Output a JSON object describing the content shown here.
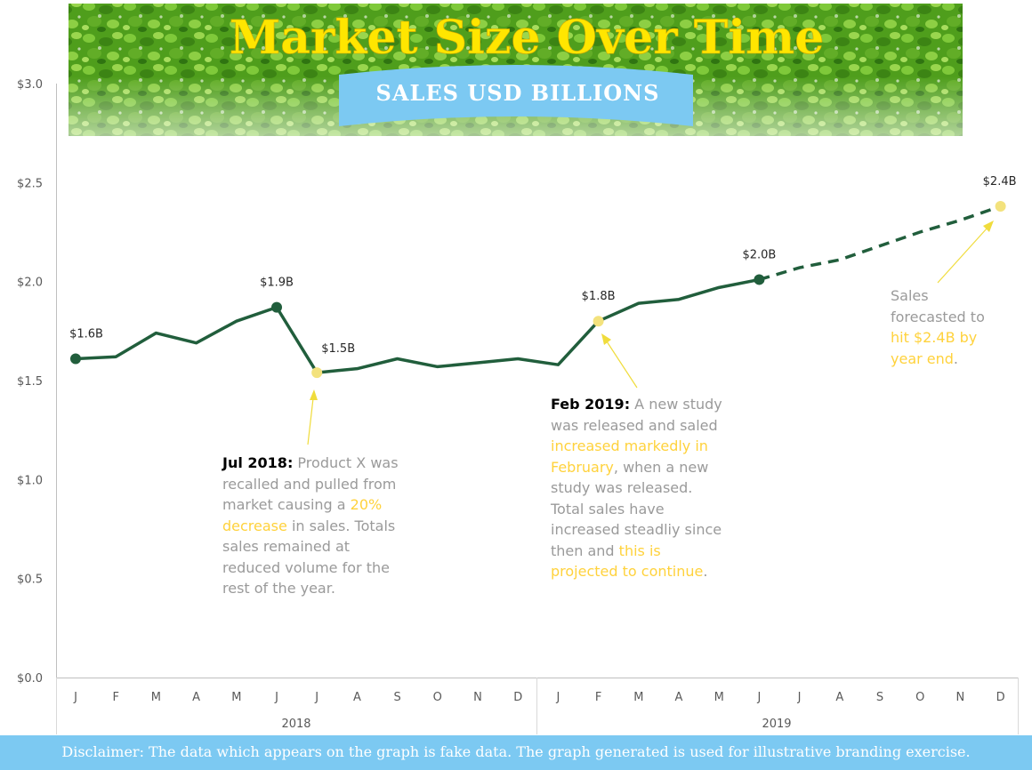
{
  "colors": {
    "line": "#215e3c",
    "highlight_marker": "#f3e27d",
    "highlight_text": "#ffd23c",
    "annotation_text": "#9a9a9a",
    "banner_sub_bg": "#7cc9f2",
    "footer_bg": "#7cc9f2",
    "title": "#ffe600"
  },
  "banner": {
    "title": "Market Size Over Time",
    "subtitle": "SALES USD BILLIONS"
  },
  "chart_data": {
    "type": "line",
    "title": "Market Size Over Time",
    "subtitle": "SALES USD BILLIONS",
    "x": [
      "2018-J",
      "2018-F",
      "2018-M",
      "2018-A",
      "2018-M",
      "2018-J",
      "2018-J",
      "2018-A",
      "2018-S",
      "2018-O",
      "2018-N",
      "2018-D",
      "2019-J",
      "2019-F",
      "2019-M",
      "2019-A",
      "2019-M",
      "2019-J",
      "2019-J",
      "2019-A",
      "2019-S",
      "2019-O",
      "2019-N",
      "2019-D"
    ],
    "month_labels": [
      "J",
      "F",
      "M",
      "A",
      "M",
      "J",
      "J",
      "A",
      "S",
      "O",
      "N",
      "D",
      "J",
      "F",
      "M",
      "A",
      "M",
      "J",
      "J",
      "A",
      "S",
      "O",
      "N",
      "D"
    ],
    "year_labels": [
      "2018",
      "2019"
    ],
    "y_tick_labels": [
      "$0.0",
      "$0.5",
      "$1.0",
      "$1.5",
      "$2.0",
      "$2.5",
      "$3.0"
    ],
    "ylim": [
      0,
      3.0
    ],
    "grid": false,
    "series": [
      {
        "style": "solid",
        "values": [
          1.61,
          1.62,
          1.74,
          1.69,
          1.8,
          1.87,
          1.54,
          1.56,
          1.61,
          1.57,
          1.59,
          1.61,
          1.58,
          1.8,
          1.89,
          1.91,
          1.97,
          2.01,
          null,
          null,
          null,
          null,
          null,
          null
        ]
      },
      {
        "style": "dashed",
        "values": [
          null,
          null,
          null,
          null,
          null,
          null,
          null,
          null,
          null,
          null,
          null,
          null,
          null,
          null,
          null,
          null,
          null,
          2.01,
          2.07,
          2.11,
          2.18,
          2.25,
          2.31,
          2.38
        ]
      }
    ],
    "data_labels": [
      {
        "index": 0,
        "text": "$1.6B"
      },
      {
        "index": 5,
        "text": "$1.9B"
      },
      {
        "index": 6,
        "text": "$1.5B"
      },
      {
        "index": 13,
        "text": "$1.8B"
      },
      {
        "index": 17,
        "text": "$2.0B"
      },
      {
        "index": 23,
        "text": "$2.4B"
      }
    ],
    "highlighted_points": [
      6,
      13,
      23
    ]
  },
  "annotations": {
    "jul2018": {
      "date": "Jul 2018",
      "colon": ":",
      "t1": " Product X was recalled and pulled from market causing a ",
      "h1": "20% decrease",
      "t2": " in sales. Totals sales remained at reduced volume for the rest of the year."
    },
    "feb2019": {
      "date": "Feb 2019",
      "colon": ":",
      "t1": " A new study was released and saled ",
      "h1": "increased markedly in February",
      "t2": ", when a new study was released. Total sales have increased steadliy since then and ",
      "h2": "this is projected to continue",
      "t3": "."
    },
    "forecast": {
      "t1": "Sales forecasted to ",
      "h1": "hit $2.4B by year end",
      "t2": "."
    }
  },
  "footer": {
    "disclaimer": "Disclaimer: The data which appears on the graph is fake data. The graph generated is used for illustrative branding exercise."
  }
}
